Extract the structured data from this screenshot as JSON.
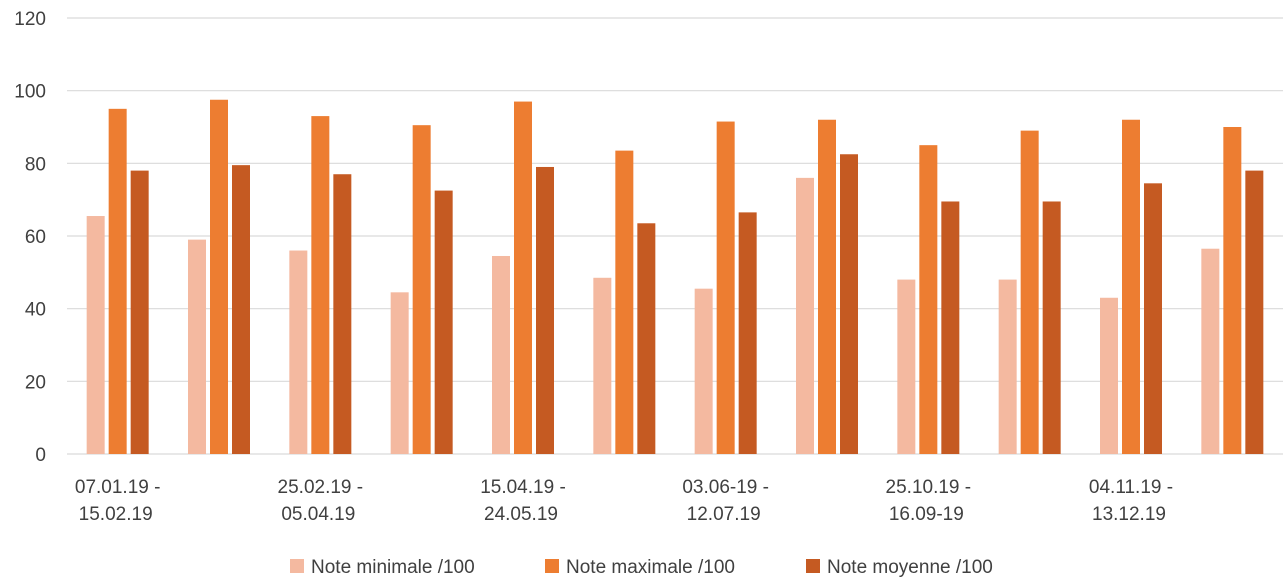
{
  "chart_data": {
    "type": "bar",
    "title": "",
    "xlabel": "",
    "ylabel": "",
    "ylim": [
      0,
      120
    ],
    "yticks": [
      0,
      20,
      40,
      60,
      80,
      100,
      120
    ],
    "grid": true,
    "legend_position": "bottom",
    "categories": [
      [
        "07.01.19 -",
        "15.02.19"
      ],
      [
        "",
        ""
      ],
      [
        "25.02.19 -",
        "05.04.19"
      ],
      [
        "",
        ""
      ],
      [
        "15.04.19 -",
        "24.05.19"
      ],
      [
        "",
        ""
      ],
      [
        "03.06-19 -",
        "12.07.19"
      ],
      [
        "",
        ""
      ],
      [
        "25.10.19 -",
        "16.09-19"
      ],
      [
        "",
        ""
      ],
      [
        "04.11.19 -",
        "13.12.19"
      ],
      [
        "",
        ""
      ]
    ],
    "series": [
      {
        "name": "Note minimale /100",
        "color": "#F4B9A0",
        "values": [
          65.5,
          59,
          56,
          44.5,
          54.5,
          48.5,
          45.5,
          76,
          48,
          48,
          43,
          56.5
        ]
      },
      {
        "name": "Note maximale /100",
        "color": "#ED7D31",
        "values": [
          95,
          97.5,
          93,
          90.5,
          97,
          83.5,
          91.5,
          92,
          85,
          89,
          92,
          90
        ]
      },
      {
        "name": "Note moyenne /100",
        "color": "#C55A22",
        "values": [
          78,
          79.5,
          77,
          72.5,
          79,
          63.5,
          66.5,
          82.5,
          69.5,
          69.5,
          74.5,
          78
        ]
      }
    ]
  }
}
